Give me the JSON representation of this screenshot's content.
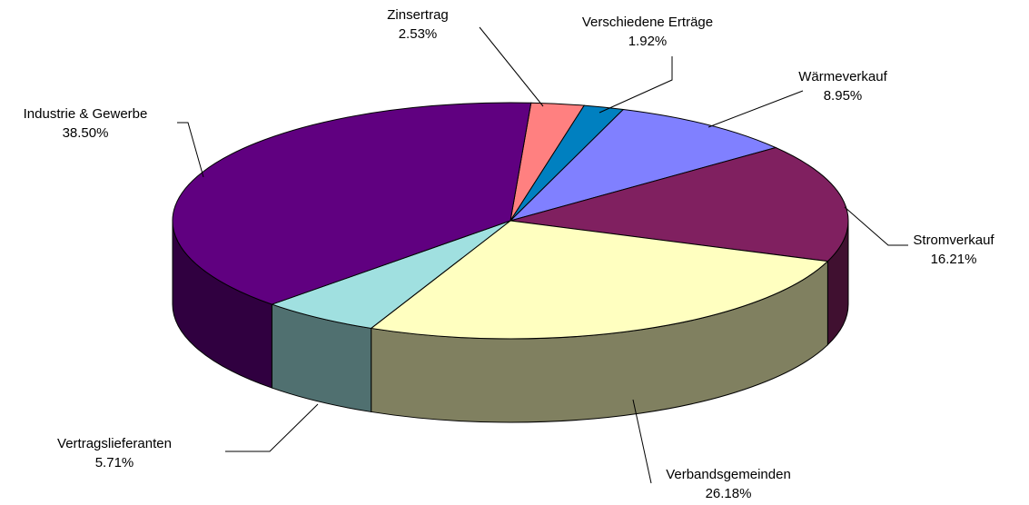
{
  "chart_data": {
    "type": "pie",
    "categories": [
      "Zinsertrag",
      "Verschiedene Erträge",
      "Wärmeverkauf",
      "Stromverkauf",
      "Verbandsgemeinden",
      "Vertragslieferanten",
      "Industrie & Gewerbe"
    ],
    "values": [
      2.53,
      1.92,
      8.95,
      16.21,
      26.18,
      5.71,
      38.5
    ],
    "value_labels": [
      "2.53%",
      "1.92%",
      "8.95%",
      "16.21%",
      "26.18%",
      "5.71%",
      "38.50%"
    ],
    "colors": [
      "#ff8080",
      "#0080c0",
      "#8080ff",
      "#802060",
      "#ffffc0",
      "#a0e0e0",
      "#600080"
    ]
  }
}
